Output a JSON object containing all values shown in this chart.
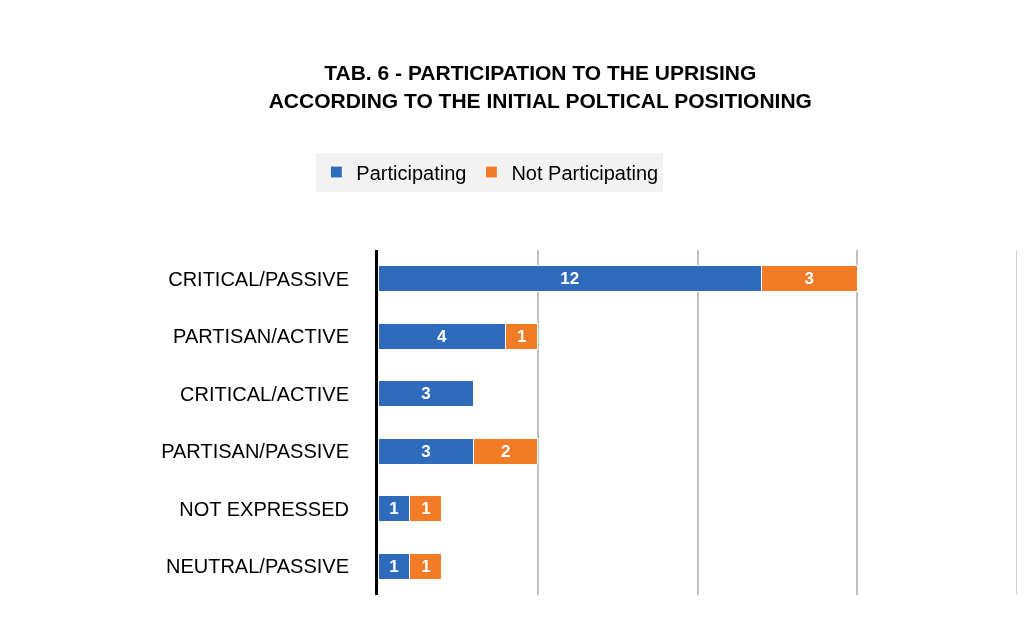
{
  "chart_data": {
    "type": "bar",
    "orientation": "horizontal",
    "stacked": true,
    "title": "TAB. 6 - PARTICIPATION TO THE UPRISING ACCORDING TO THE INITIAL POLTICAL POSITIONING",
    "categories": [
      "CRITICAL/PASSIVE",
      "PARTISAN/ACTIVE",
      "CRITICAL/ACTIVE",
      "PARTISAN/PASSIVE",
      "NOT EXPRESSED",
      "NEUTRAL/PASSIVE"
    ],
    "series": [
      {
        "name": "Participating",
        "color": "#2f6bbd",
        "values": [
          12,
          4,
          3,
          3,
          1,
          1
        ]
      },
      {
        "name": "Not Participating",
        "color": "#f27b26",
        "values": [
          3,
          1,
          null,
          2,
          1,
          1
        ]
      }
    ],
    "xlim": [
      0,
      20
    ],
    "xticks": [
      {
        "value": 0,
        "label": null
      },
      {
        "value": 5,
        "label": null
      },
      {
        "value": 10,
        "label": null
      },
      {
        "value": 15,
        "label": null
      },
      {
        "value": 20,
        "label": null
      }
    ],
    "tick_labels": "y",
    "grid": "x",
    "legend": "top",
    "data_labels": true
  }
}
